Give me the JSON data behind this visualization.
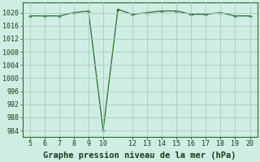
{
  "x": [
    5,
    6,
    7,
    8,
    9,
    10,
    11,
    12,
    13,
    14,
    15,
    16,
    17,
    18,
    19,
    20
  ],
  "y": [
    1019,
    1019,
    1019,
    1020,
    1020.5,
    984,
    1021,
    1019.5,
    1020,
    1020.5,
    1020.5,
    1019.5,
    1019.5,
    1020,
    1019,
    1019
  ],
  "xlim": [
    4.5,
    20.5
  ],
  "ylim": [
    982,
    1023
  ],
  "yticks": [
    984,
    988,
    992,
    996,
    1000,
    1004,
    1008,
    1012,
    1016,
    1020
  ],
  "xticks": [
    5,
    6,
    7,
    8,
    9,
    10,
    12,
    13,
    14,
    15,
    16,
    17,
    18,
    19,
    20
  ],
  "xlabel": "Graphe pression niveau de la mer (hPa)",
  "line_color": "#2d6a2d",
  "marker": "+",
  "bg_color": "#ceeee4",
  "grid_color": "#a8ccc0",
  "text_color": "#1a3a1a",
  "xlabel_fontsize": 7.5,
  "tick_fontsize": 6
}
